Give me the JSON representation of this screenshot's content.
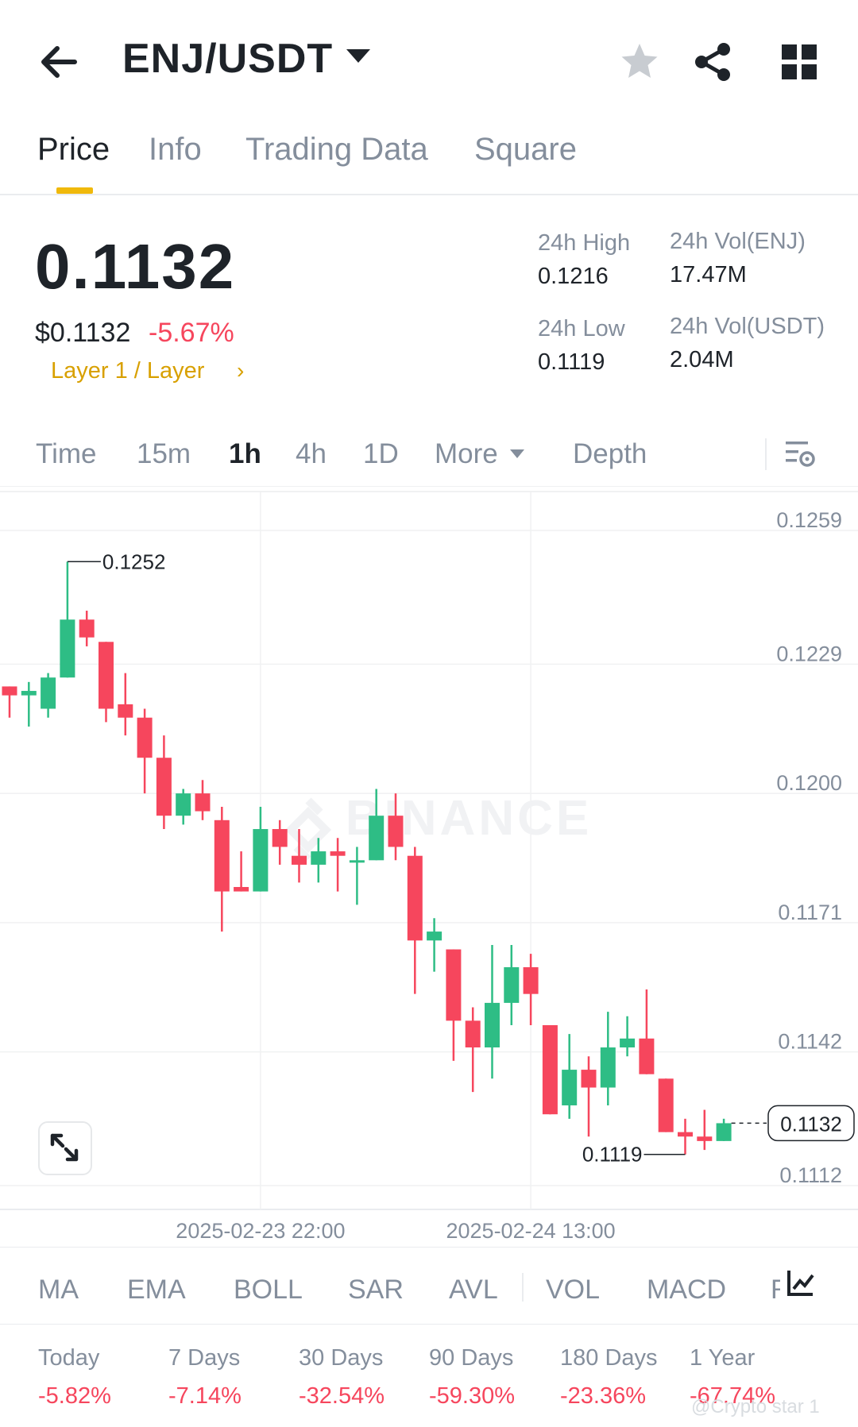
{
  "header": {
    "pair": "ENJ/USDT",
    "icons": [
      "back-arrow-icon",
      "dropdown-caret-icon",
      "star-icon",
      "share-icon",
      "grid-icon"
    ]
  },
  "tabs": [
    {
      "label": "Price",
      "active": true
    },
    {
      "label": "Info"
    },
    {
      "label": "Trading Data"
    },
    {
      "label": "Square"
    }
  ],
  "price": {
    "last": "0.1132",
    "usd": "$0.1132",
    "change_pct": "-5.67%",
    "tag": "Layer 1 / Layer"
  },
  "stats": {
    "high_label": "24h High",
    "high": "0.1216",
    "low_label": "24h Low",
    "low": "0.1119",
    "vol_enj_label": "24h Vol(ENJ)",
    "vol_enj": "17.47M",
    "vol_usdt_label": "24h Vol(USDT)",
    "vol_usdt": "2.04M"
  },
  "timeframes": {
    "time": "Time",
    "m15": "15m",
    "h1": "1h",
    "h4": "4h",
    "d1": "1D",
    "more": "More",
    "depth": "Depth",
    "active": "1h"
  },
  "chart": {
    "y_ticks": [
      "0.1259",
      "0.1229",
      "0.1200",
      "0.1171",
      "0.1142",
      "0.1112"
    ],
    "x_ticks": [
      "2025-02-23 22:00",
      "2025-02-24 13:00"
    ],
    "high_marker": "0.1252",
    "low_marker": "0.1119",
    "last_price_label": "0.1132",
    "watermark": "BINANCE",
    "colors": {
      "up": "#2ebd85",
      "down": "#f6465d",
      "grid": "#f0f1f2",
      "axis_text": "#848e9c"
    }
  },
  "chart_data": {
    "type": "candlestick",
    "interval": "1h",
    "ylim": [
      0.1112,
      0.1259
    ],
    "y_ticks": [
      0.1259,
      0.1229,
      0.12,
      0.1171,
      0.1142,
      0.1112
    ],
    "x_tick_labels": [
      "2025-02-23 22:00",
      "2025-02-24 13:00"
    ],
    "candles": [
      {
        "o": 0.1224,
        "h": 0.1224,
        "l": 0.1217,
        "c": 0.1222
      },
      {
        "o": 0.1222,
        "h": 0.1225,
        "l": 0.1215,
        "c": 0.1223
      },
      {
        "o": 0.1219,
        "h": 0.1227,
        "l": 0.1217,
        "c": 0.1226
      },
      {
        "o": 0.1226,
        "h": 0.1252,
        "l": 0.1226,
        "c": 0.1239
      },
      {
        "o": 0.1239,
        "h": 0.1241,
        "l": 0.1233,
        "c": 0.1235
      },
      {
        "o": 0.1234,
        "h": 0.1234,
        "l": 0.1216,
        "c": 0.1219
      },
      {
        "o": 0.122,
        "h": 0.1227,
        "l": 0.1213,
        "c": 0.1217
      },
      {
        "o": 0.1217,
        "h": 0.1219,
        "l": 0.12,
        "c": 0.1208
      },
      {
        "o": 0.1208,
        "h": 0.1213,
        "l": 0.1192,
        "c": 0.1195
      },
      {
        "o": 0.1195,
        "h": 0.1201,
        "l": 0.1193,
        "c": 0.12
      },
      {
        "o": 0.12,
        "h": 0.1203,
        "l": 0.1194,
        "c": 0.1196
      },
      {
        "o": 0.1194,
        "h": 0.1197,
        "l": 0.1169,
        "c": 0.1178
      },
      {
        "o": 0.1179,
        "h": 0.1187,
        "l": 0.1178,
        "c": 0.1178
      },
      {
        "o": 0.1178,
        "h": 0.1197,
        "l": 0.1178,
        "c": 0.1192
      },
      {
        "o": 0.1192,
        "h": 0.1194,
        "l": 0.1184,
        "c": 0.1188
      },
      {
        "o": 0.1186,
        "h": 0.1192,
        "l": 0.118,
        "c": 0.1184
      },
      {
        "o": 0.1184,
        "h": 0.119,
        "l": 0.118,
        "c": 0.1187
      },
      {
        "o": 0.1187,
        "h": 0.119,
        "l": 0.1178,
        "c": 0.1186
      },
      {
        "o": 0.1185,
        "h": 0.1188,
        "l": 0.1175,
        "c": 0.1185
      },
      {
        "o": 0.1185,
        "h": 0.1201,
        "l": 0.1185,
        "c": 0.1195
      },
      {
        "o": 0.1195,
        "h": 0.12,
        "l": 0.1185,
        "c": 0.1188
      },
      {
        "o": 0.1186,
        "h": 0.1188,
        "l": 0.1155,
        "c": 0.1167
      },
      {
        "o": 0.1167,
        "h": 0.1172,
        "l": 0.116,
        "c": 0.1169
      },
      {
        "o": 0.1165,
        "h": 0.1165,
        "l": 0.114,
        "c": 0.1149
      },
      {
        "o": 0.1149,
        "h": 0.1152,
        "l": 0.1133,
        "c": 0.1143
      },
      {
        "o": 0.1143,
        "h": 0.1166,
        "l": 0.1136,
        "c": 0.1153
      },
      {
        "o": 0.1153,
        "h": 0.1166,
        "l": 0.1148,
        "c": 0.1161
      },
      {
        "o": 0.1161,
        "h": 0.1164,
        "l": 0.1148,
        "c": 0.1155
      },
      {
        "o": 0.1148,
        "h": 0.1148,
        "l": 0.1128,
        "c": 0.1128
      },
      {
        "o": 0.113,
        "h": 0.1146,
        "l": 0.1127,
        "c": 0.1138
      },
      {
        "o": 0.1138,
        "h": 0.1141,
        "l": 0.1123,
        "c": 0.1134
      },
      {
        "o": 0.1134,
        "h": 0.1151,
        "l": 0.113,
        "c": 0.1143
      },
      {
        "o": 0.1143,
        "h": 0.115,
        "l": 0.1141,
        "c": 0.1145
      },
      {
        "o": 0.1145,
        "h": 0.1156,
        "l": 0.1137,
        "c": 0.1137
      },
      {
        "o": 0.1136,
        "h": 0.1136,
        "l": 0.1124,
        "c": 0.1124
      },
      {
        "o": 0.1124,
        "h": 0.1127,
        "l": 0.1119,
        "c": 0.1123
      },
      {
        "o": 0.1123,
        "h": 0.1129,
        "l": 0.112,
        "c": 0.1122
      },
      {
        "o": 0.1122,
        "h": 0.1127,
        "l": 0.1122,
        "c": 0.1126
      }
    ],
    "high_label": "0.1252",
    "low_label": "0.1119",
    "last_price": "0.1132"
  },
  "indicators": [
    "MA",
    "EMA",
    "BOLL",
    "SAR",
    "AVL",
    "VOL",
    "MACD",
    "R"
  ],
  "performance": [
    {
      "label": "Today",
      "value": "-5.82%"
    },
    {
      "label": "7 Days",
      "value": "-7.14%"
    },
    {
      "label": "30 Days",
      "value": "-32.54%"
    },
    {
      "label": "90 Days",
      "value": "-59.30%"
    },
    {
      "label": "180 Days",
      "value": "-23.36%"
    },
    {
      "label": "1 Year",
      "value": "-67.74%"
    }
  ],
  "watermark_corner": "@Crypto star 1"
}
